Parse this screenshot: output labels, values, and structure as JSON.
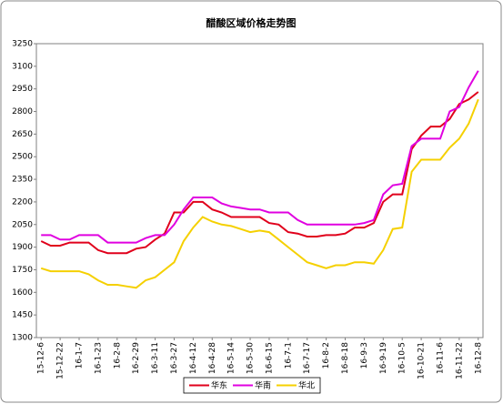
{
  "chart_data": {
    "type": "line",
    "title": "醋酸区域价格走势图",
    "categories": [
      "15-12-6",
      null,
      "15-12-22",
      null,
      "16-1-7",
      null,
      "16-1-23",
      null,
      "16-2-8",
      null,
      "16-2-29",
      null,
      "16-3-11",
      null,
      "16-3-27",
      null,
      "16-4-12",
      null,
      "16-4-28",
      null,
      "16-5-14",
      null,
      "16-5-30",
      null,
      "16-6-15",
      null,
      "16-7-1",
      null,
      "16-7-17",
      null,
      "16-8-2",
      null,
      "16-8-18",
      null,
      "16-9-3",
      null,
      "16-9-19",
      null,
      "16-10-5",
      null,
      "16-10-21",
      null,
      "16-11-6",
      null,
      "16-11-22",
      null,
      "16-12-8"
    ],
    "series": [
      {
        "name": "华东",
        "color": "#e0001b",
        "values": [
          1940,
          1910,
          1910,
          1930,
          1930,
          1930,
          1880,
          1860,
          1860,
          1860,
          1890,
          1900,
          1950,
          1990,
          2130,
          2130,
          2200,
          2200,
          2150,
          2130,
          2100,
          2100,
          2100,
          2100,
          2060,
          2050,
          2000,
          1990,
          1970,
          1970,
          1980,
          1980,
          1990,
          2030,
          2030,
          2060,
          2200,
          2250,
          2250,
          2550,
          2640,
          2700,
          2700,
          2750,
          2850,
          2880,
          2930
        ]
      },
      {
        "name": "华南",
        "color": "#e000e0",
        "values": [
          1980,
          1980,
          1950,
          1950,
          1980,
          1980,
          1980,
          1930,
          1930,
          1930,
          1930,
          1960,
          1980,
          1980,
          2050,
          2150,
          2230,
          2230,
          2230,
          2190,
          2170,
          2160,
          2150,
          2150,
          2130,
          2130,
          2130,
          2080,
          2050,
          2050,
          2050,
          2050,
          2050,
          2050,
          2060,
          2080,
          2250,
          2310,
          2320,
          2570,
          2620,
          2620,
          2620,
          2800,
          2830,
          2960,
          3070
        ]
      },
      {
        "name": "华北",
        "color": "#f5d000",
        "values": [
          1760,
          1740,
          1740,
          1740,
          1740,
          1720,
          1680,
          1650,
          1650,
          1640,
          1630,
          1680,
          1700,
          1750,
          1800,
          1940,
          2030,
          2100,
          2070,
          2050,
          2040,
          2020,
          2000,
          2010,
          2000,
          1950,
          1900,
          1850,
          1800,
          1780,
          1760,
          1780,
          1780,
          1800,
          1800,
          1790,
          1880,
          2020,
          2030,
          2400,
          2480,
          2480,
          2480,
          2560,
          2620,
          2720,
          2880
        ]
      }
    ],
    "ylim": [
      1300,
      3250
    ],
    "yticks": [
      1300,
      1450,
      1600,
      1750,
      1900,
      2050,
      2200,
      2350,
      2500,
      2650,
      2800,
      2950,
      3100,
      3250
    ]
  }
}
